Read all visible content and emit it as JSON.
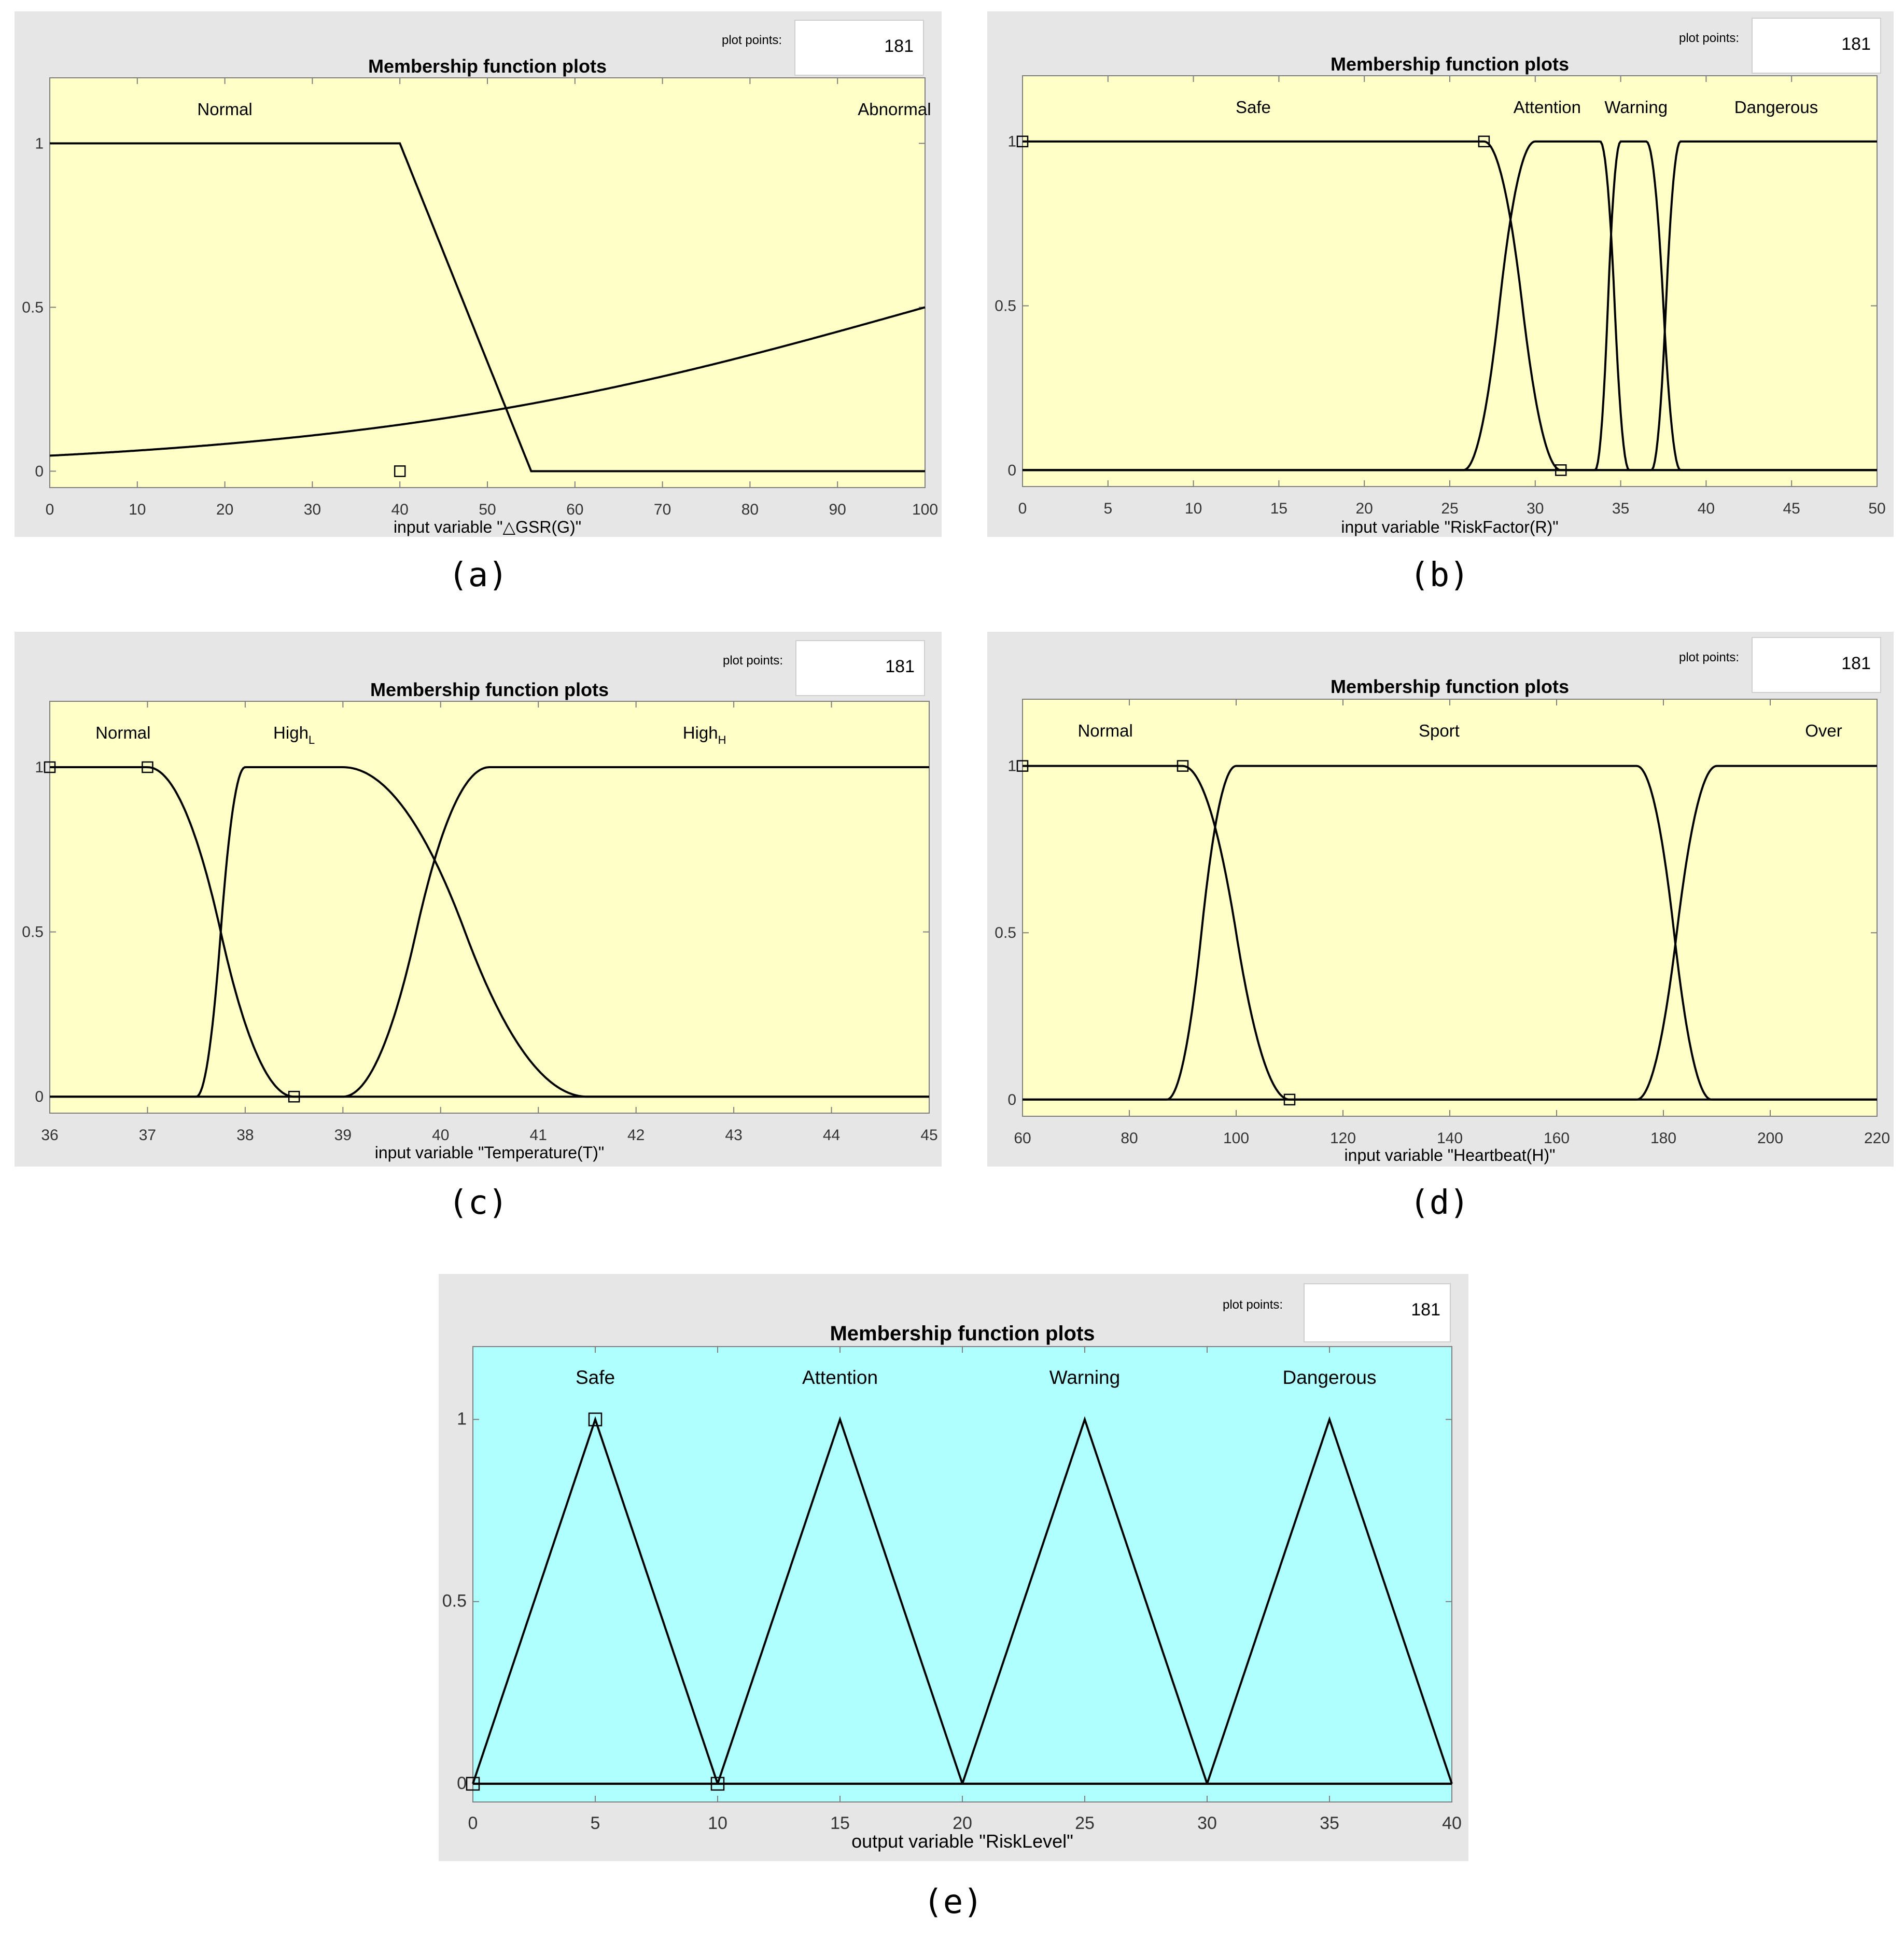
{
  "plot_points_label": "plot points:",
  "plot_points_value": "181",
  "chart_data": [
    {
      "id": "a",
      "type": "line",
      "title": "Membership function plots",
      "xlabel": "input variable \"△GSR(G)\"",
      "caption": "(a)",
      "background": "#ffffc8",
      "xlim": [
        0,
        100
      ],
      "ylim": [
        -0.05,
        1.2
      ],
      "xticks": [
        0,
        10,
        20,
        30,
        40,
        50,
        60,
        70,
        80,
        90,
        100
      ],
      "yticks": [
        0,
        0.5,
        1
      ],
      "ytick_labels": [
        "0",
        "0.5",
        "1"
      ],
      "series": [
        {
          "name": "Normal",
          "mf": "trap",
          "params": [
            -1,
            0,
            40,
            55
          ],
          "label_x": 20
        },
        {
          "name": "Abnormal",
          "mf": "sig",
          "params": [
            0.03,
            100
          ],
          "label_x": 96.5
        }
      ],
      "markers": [
        [
          40,
          0
        ]
      ]
    },
    {
      "id": "b",
      "type": "line",
      "title": "Membership function plots",
      "xlabel": "input variable \"RiskFactor(R)\"",
      "caption": "(b)",
      "background": "#ffffc8",
      "xlim": [
        0,
        50
      ],
      "ylim": [
        -0.05,
        1.2
      ],
      "xticks": [
        0,
        5,
        10,
        15,
        20,
        25,
        30,
        35,
        40,
        45,
        50
      ],
      "yticks": [
        0,
        0.5,
        1
      ],
      "ytick_labels": [
        "0",
        "0.5",
        "1"
      ],
      "series": [
        {
          "name": "Safe",
          "mf": "smf_down",
          "params": [
            27,
            31.5
          ],
          "label_x": 13.5
        },
        {
          "name": "Attention",
          "mf": "pi",
          "params": [
            25.8,
            30,
            33.8,
            35.5
          ],
          "label_x": 30.7
        },
        {
          "name": "Warning",
          "mf": "pi",
          "params": [
            33.5,
            35,
            36.5,
            38.5
          ],
          "label_x": 35.9
        },
        {
          "name": "Dangerous",
          "mf": "smf_up",
          "params": [
            36.8,
            38.5
          ],
          "label_x": 44.1
        }
      ],
      "markers": [
        [
          0,
          1
        ],
        [
          27,
          1
        ],
        [
          31.5,
          0
        ]
      ]
    },
    {
      "id": "c",
      "type": "line",
      "title": "Membership function plots",
      "xlabel": "input variable \"Temperature(T)\"",
      "caption": "(c)",
      "background": "#ffffc8",
      "xlim": [
        36,
        45
      ],
      "ylim": [
        -0.05,
        1.2
      ],
      "xticks": [
        36,
        37,
        38,
        39,
        40,
        41,
        42,
        43,
        44,
        45
      ],
      "yticks": [
        0,
        0.5,
        1
      ],
      "ytick_labels": [
        "0",
        "0.5",
        "1"
      ],
      "series": [
        {
          "name": "Normal",
          "mf": "smf_down",
          "params": [
            37,
            38.5
          ],
          "label_x": 36.75
        },
        {
          "name": "High",
          "sub": "L",
          "mf": "pi",
          "params": [
            37.5,
            38,
            39,
            41.5
          ],
          "label_x": 38.5
        },
        {
          "name": "High",
          "sub": "H",
          "mf": "smf_up",
          "params": [
            39,
            40.5
          ],
          "label_x": 42.7
        }
      ],
      "markers": [
        [
          36,
          1
        ],
        [
          37,
          1
        ],
        [
          38.5,
          0
        ]
      ]
    },
    {
      "id": "d",
      "type": "line",
      "title": "Membership function plots",
      "xlabel": "input variable \"Heartbeat(H)\"",
      "caption": "(d)",
      "background": "#ffffc8",
      "xlim": [
        60,
        220
      ],
      "ylim": [
        -0.05,
        1.2
      ],
      "xticks": [
        60,
        80,
        100,
        120,
        140,
        160,
        180,
        200,
        220
      ],
      "yticks": [
        0,
        0.5,
        1
      ],
      "ytick_labels": [
        "0",
        "0.5",
        "1"
      ],
      "series": [
        {
          "name": "Normal",
          "mf": "smf_down",
          "params": [
            90,
            110
          ],
          "label_x": 75.5
        },
        {
          "name": "Sport",
          "mf": "pi",
          "params": [
            87,
            100,
            175,
            189
          ],
          "label_x": 138
        },
        {
          "name": "Over",
          "mf": "smf_up",
          "params": [
            175,
            190
          ],
          "label_x": 210
        }
      ],
      "markers": [
        [
          60,
          1
        ],
        [
          90,
          1
        ],
        [
          110,
          0
        ]
      ]
    },
    {
      "id": "e",
      "type": "line",
      "title": "Membership function plots",
      "xlabel": "output variable \"RiskLevel\"",
      "caption": "(e)",
      "background": "#b0ffff",
      "xlim": [
        0,
        40
      ],
      "ylim": [
        -0.05,
        1.2
      ],
      "xticks": [
        0,
        5,
        10,
        15,
        20,
        25,
        30,
        35,
        40
      ],
      "yticks": [
        0,
        0.5,
        1
      ],
      "ytick_labels": [
        "0",
        "0.5",
        "1"
      ],
      "series": [
        {
          "name": "Safe",
          "mf": "tri",
          "params": [
            0,
            5,
            10
          ],
          "label_x": 5
        },
        {
          "name": "Attention",
          "mf": "tri",
          "params": [
            10,
            15,
            20
          ],
          "label_x": 15
        },
        {
          "name": "Warning",
          "mf": "tri",
          "params": [
            20,
            25,
            30
          ],
          "label_x": 25
        },
        {
          "name": "Dangerous",
          "mf": "tri",
          "params": [
            30,
            35,
            40
          ],
          "label_x": 35
        }
      ],
      "markers": [
        [
          0,
          0
        ],
        [
          5,
          1
        ],
        [
          10,
          0
        ]
      ]
    }
  ]
}
